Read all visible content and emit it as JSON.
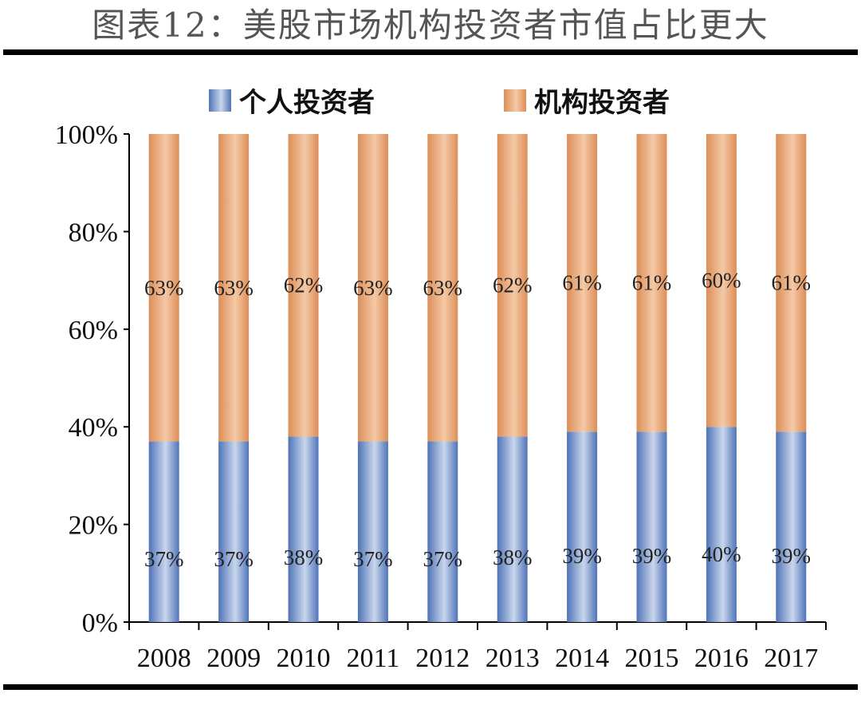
{
  "title": "图表12：美股市场机构投资者市值占比更大",
  "colors": {
    "individual_light": "#c9d6ec",
    "individual_dark": "#4f74b8",
    "institutional_light": "#f4c9a6",
    "institutional_dark": "#dd8e58"
  },
  "chart_data": {
    "type": "bar",
    "stacked": true,
    "categories": [
      "2008",
      "2009",
      "2010",
      "2011",
      "2012",
      "2013",
      "2014",
      "2015",
      "2016",
      "2017"
    ],
    "series": [
      {
        "name": "个人投资者",
        "values": [
          37,
          37,
          38,
          37,
          37,
          38,
          39,
          39,
          40,
          39
        ],
        "labels": [
          "37%",
          "37%",
          "38%",
          "37%",
          "37%",
          "38%",
          "39%",
          "39%",
          "40%",
          "39%"
        ]
      },
      {
        "name": "机构投资者",
        "values": [
          63,
          63,
          62,
          63,
          63,
          62,
          61,
          61,
          60,
          61
        ],
        "labels": [
          "63%",
          "63%",
          "62%",
          "63%",
          "63%",
          "62%",
          "61%",
          "61%",
          "60%",
          "61%"
        ]
      }
    ],
    "ylim": [
      0,
      100
    ],
    "yticks": [
      "0%",
      "20%",
      "40%",
      "60%",
      "80%",
      "100%"
    ],
    "legend": "top",
    "grid": false
  }
}
